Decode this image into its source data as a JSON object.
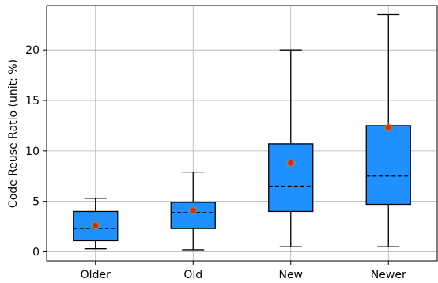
{
  "chart_data": {
    "type": "box",
    "title": "",
    "xlabel": "",
    "ylabel": "Code Reuse Ratio (unit: %)",
    "ylim": [
      -0.9,
      24.4
    ],
    "yticks": [
      0,
      5,
      10,
      15,
      20
    ],
    "grid": true,
    "categories": [
      "Older",
      "Old",
      "New",
      "Newer"
    ],
    "boxes": [
      {
        "category": "Older",
        "whisker_low": 0.3,
        "q1": 1.1,
        "median": 2.3,
        "q3": 4.0,
        "whisker_high": 5.3,
        "mean": 2.6
      },
      {
        "category": "Old",
        "whisker_low": 0.2,
        "q1": 2.3,
        "median": 3.9,
        "q3": 4.9,
        "whisker_high": 7.9,
        "mean": 4.1
      },
      {
        "category": "New",
        "whisker_low": 0.5,
        "q1": 4.0,
        "median": 6.5,
        "q3": 10.7,
        "whisker_high": 20.0,
        "mean": 8.8
      },
      {
        "category": "Newer",
        "whisker_low": 0.5,
        "q1": 4.7,
        "median": 7.5,
        "q3": 12.5,
        "whisker_high": 23.5,
        "mean": 12.3
      }
    ],
    "colors": {
      "box_fill": "#1e90ff",
      "box_edge": "#000000",
      "mean_marker": "#d62728",
      "mean_marker_edge": "#b8860b",
      "grid": "#b0b0b0"
    }
  }
}
